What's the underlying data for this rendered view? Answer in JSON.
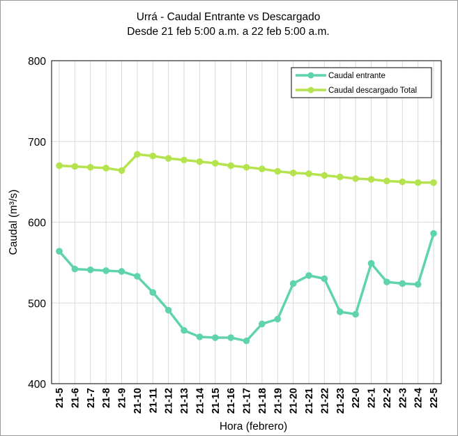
{
  "chart_data": {
    "type": "line",
    "title": "Urrá - Caudal Entrante vs Descargado",
    "subtitle": "Desde 21 feb 5:00 a.m. a 22 feb 5:00 a.m.",
    "xlabel": "Hora (febrero)",
    "ylabel": "Caudal (m³/s)",
    "ylim": [
      400,
      800
    ],
    "yticks": [
      400,
      500,
      600,
      700,
      800
    ],
    "grid": true,
    "legend_position": "top-right",
    "categories": [
      "21-5",
      "21-6",
      "21-7",
      "21-8",
      "21-9",
      "21-10",
      "21-11",
      "21-12",
      "21-13",
      "21-14",
      "21-15",
      "21-16",
      "21-17",
      "21-18",
      "21-19",
      "21-20",
      "21-21",
      "21-22",
      "21-23",
      "22-0",
      "22-1",
      "22-2",
      "22-3",
      "22-4",
      "22-5"
    ],
    "series": [
      {
        "name": "Caudal entrante",
        "color": "#5fd3a9",
        "values": [
          564,
          542,
          541,
          540,
          539,
          533,
          513,
          491,
          466,
          458,
          457,
          457,
          453,
          474,
          480,
          524,
          534,
          530,
          489,
          486,
          549,
          526,
          524,
          523,
          586
        ]
      },
      {
        "name": "Caudal descargado Total",
        "color": "#b4e34d",
        "values": [
          670,
          669,
          668,
          667,
          664,
          684,
          682,
          679,
          677,
          675,
          673,
          670,
          668,
          666,
          663,
          661,
          660,
          658,
          656,
          654,
          653,
          651,
          650,
          649,
          649
        ]
      }
    ]
  }
}
